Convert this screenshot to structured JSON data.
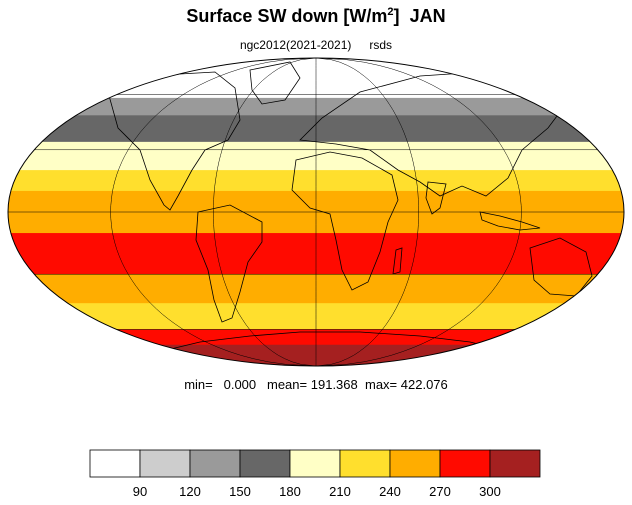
{
  "header": {
    "title_main": "Surface SW down [W/m",
    "title_sup": "2",
    "title_close": "]",
    "title_month": "JAN",
    "model": "ngc2012(2021-2021)",
    "variable": "rsds"
  },
  "stats": {
    "min_label": "min=",
    "min_value": "0.000",
    "mean_label": "mean=",
    "mean_value": "191.368",
    "max_label": "max=",
    "max_value": "422.076"
  },
  "legend": {
    "colors": [
      "#ffffff",
      "#cdcdcd",
      "#9a9a9a",
      "#676767",
      "#ffffc6",
      "#ffdf2d",
      "#ffad00",
      "#ff0a00",
      "#a52020"
    ],
    "tick_labels": [
      "90",
      "120",
      "150",
      "180",
      "210",
      "240",
      "270",
      "300"
    ]
  },
  "map_data": {
    "projection": "Mollweide",
    "month": "JAN",
    "units": "W/m2",
    "zonal_bands": [
      {
        "lat_from": 90,
        "lat_to": 67,
        "value": 0
      },
      {
        "lat_from": 67,
        "lat_to": 58,
        "value": 80
      },
      {
        "lat_from": 58,
        "lat_to": 48,
        "value": 130
      },
      {
        "lat_from": 48,
        "lat_to": 34,
        "value": 165
      },
      {
        "lat_from": 34,
        "lat_to": 20,
        "value": 195
      },
      {
        "lat_from": 20,
        "lat_to": 10,
        "value": 225
      },
      {
        "lat_from": 10,
        "lat_to": 0,
        "value": 250
      },
      {
        "lat_from": 0,
        "lat_to": -10,
        "value": 265
      },
      {
        "lat_from": -10,
        "lat_to": -30,
        "value": 285
      },
      {
        "lat_from": -30,
        "lat_to": -45,
        "value": 260
      },
      {
        "lat_from": -45,
        "lat_to": -60,
        "value": 235
      },
      {
        "lat_from": -60,
        "lat_to": -70,
        "value": 275
      },
      {
        "lat_from": -70,
        "lat_to": -90,
        "value": 315
      }
    ]
  }
}
